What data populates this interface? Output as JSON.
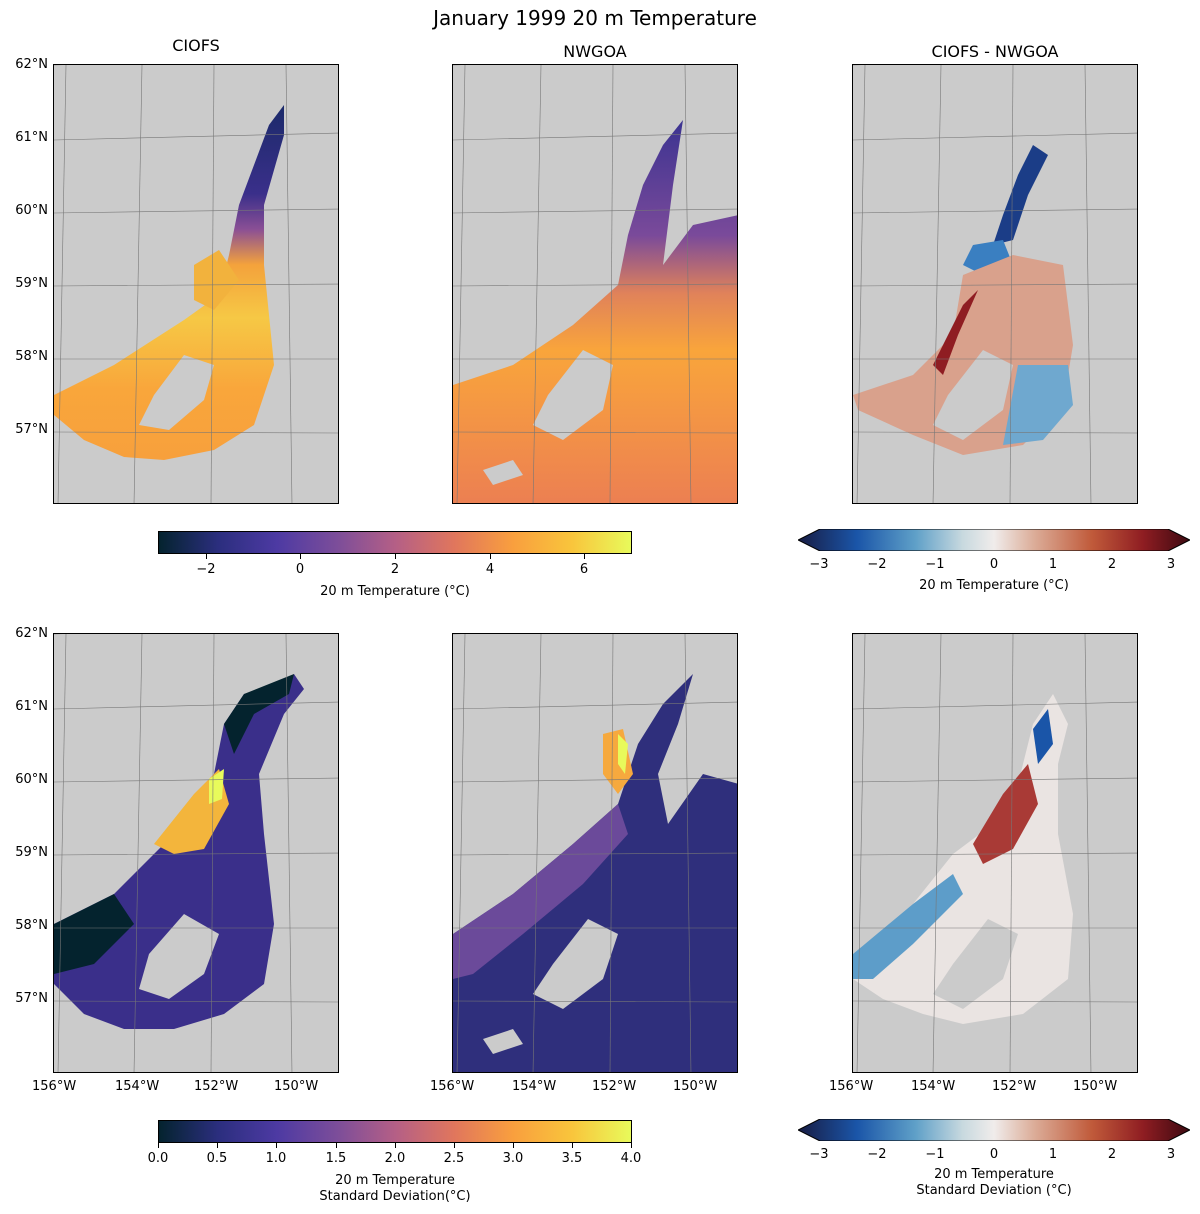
{
  "title": "January 1999 20 m Temperature",
  "columns": [
    "CIOFS",
    "NWGOA",
    "CIOFS - NWGOA"
  ],
  "lat_labels": [
    "62°N",
    "61°N",
    "60°N",
    "59°N",
    "58°N",
    "57°N"
  ],
  "lon_labels": [
    "156°W",
    "154°W",
    "152°W",
    "150°W"
  ],
  "colors": {
    "land": "#cbcbcb",
    "thermal": [
      "#04232e",
      "#2b2e7e",
      "#4d3aa3",
      "#7b4d9a",
      "#b45f86",
      "#e0765d",
      "#f99f3e",
      "#f9c53c",
      "#e8fa5b"
    ],
    "balance": [
      "#181c43",
      "#1a55a8",
      "#5fa0c8",
      "#c8d9df",
      "#f0eceb",
      "#dcae9a",
      "#c05a3a",
      "#8f1d22",
      "#3c0911"
    ]
  },
  "colorbars": {
    "row1_left": {
      "label": "20 m Temperature (°C)",
      "ticks": [
        "−2",
        "0",
        "2",
        "4",
        "6"
      ]
    },
    "row1_right": {
      "label": "20 m Temperature (°C)",
      "ticks": [
        "−3",
        "−2",
        "−1",
        "0",
        "1",
        "2",
        "3"
      ]
    },
    "row2_left": {
      "label_line1": "20 m Temperature",
      "label_line2": "Standard Deviation(°C)",
      "ticks": [
        "0.0",
        "0.5",
        "1.0",
        "1.5",
        "2.0",
        "2.5",
        "3.0",
        "3.5",
        "4.0"
      ]
    },
    "row2_right": {
      "label_line1": "20 m Temperature",
      "label_line2": "Standard Deviation (°C)",
      "ticks": [
        "−3",
        "−2",
        "−1",
        "0",
        "1",
        "2",
        "3"
      ]
    }
  }
}
